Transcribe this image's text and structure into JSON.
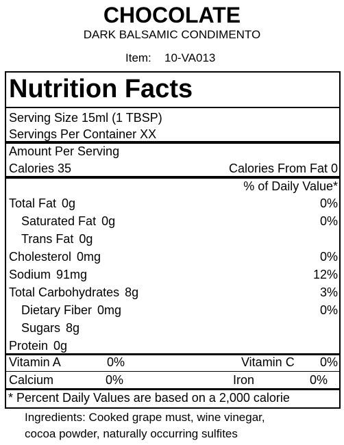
{
  "header": {
    "title": "CHOCOLATE",
    "subtitle": "DARK BALSAMIC CONDIMENTO",
    "item_label": "Item:",
    "item_number": "10-VA013"
  },
  "label": {
    "title": "Nutrition Facts",
    "serving_size": "Serving Size  15ml (1 TBSP)",
    "servings_per_container": "Servings Per Container  XX",
    "amount_per_serving": "Amount Per Serving",
    "calories": "Calories 35",
    "calories_from_fat": "Calories From Fat 0",
    "daily_value_header": "% of Daily Value*",
    "nutrients": [
      {
        "name": "Total Fat",
        "amount": "0g",
        "dv": "0%"
      },
      {
        "name": "Saturated Fat",
        "amount": "0g",
        "dv": "0%"
      },
      {
        "name": "Trans Fat",
        "amount": "0g"
      },
      {
        "name": "Cholesterol",
        "amount": "0mg",
        "dv": "0%"
      },
      {
        "name": "Sodium",
        "amount": "91mg",
        "dv": "12%"
      },
      {
        "name": "Total Carbohydrates",
        "amount": "8g",
        "dv": "3%"
      },
      {
        "name": "Dietary Fiber",
        "amount": "0mg",
        "dv": "0%"
      },
      {
        "name": "Sugars",
        "amount": "8g"
      },
      {
        "name": "Protein",
        "amount": "0g"
      }
    ],
    "vitamins": [
      [
        "Vitamin A",
        "0%",
        "Vitamin C",
        "0%"
      ],
      [
        "Calcium",
        "0%",
        "Iron",
        "0%"
      ]
    ],
    "footnote": "* Percent Daily Values are based on a 2,000 calorie"
  },
  "ingredients": [
    "Ingredients: Cooked grape must, wine vinegar,",
    "cocoa powder, naturally occurring sulfites"
  ]
}
